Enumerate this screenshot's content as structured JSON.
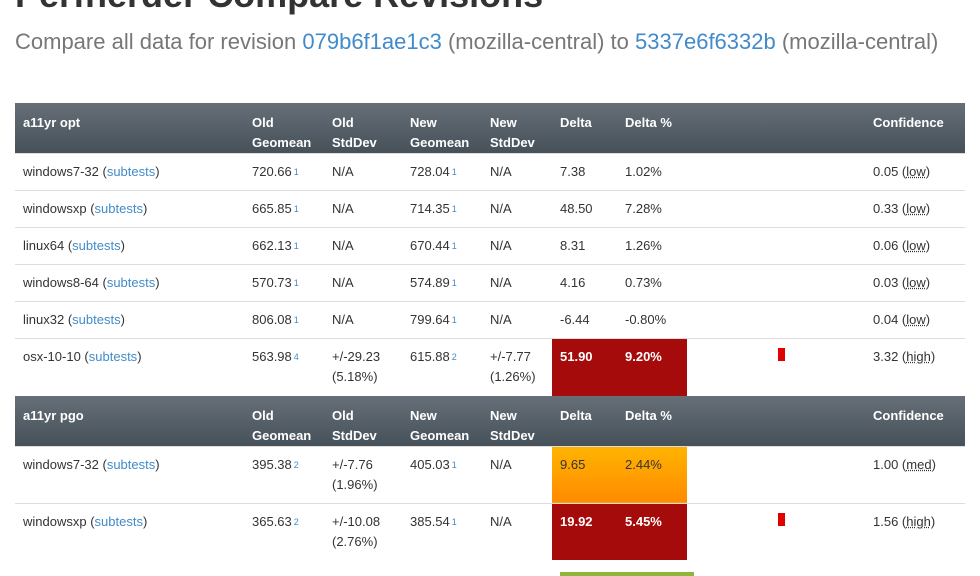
{
  "page": {
    "title": "Perfherder Compare Revisions",
    "subtitle": {
      "prefix": "Compare all data for revision",
      "original_rev": "079b6f1ae1c3",
      "original_repo": "(mozilla-central) to",
      "new_rev": "5337e6f6332b",
      "new_repo": "(mozilla-central)"
    }
  },
  "columns": {
    "old_geomean": "Old Geomean",
    "old_stddev": "Old StdDev",
    "new_geomean": "New Geomean",
    "new_stddev": "New StdDev",
    "delta": "Delta",
    "delta_pct": "Delta %",
    "confidence": "Confidence"
  },
  "groups": [
    {
      "name": "a11yr opt",
      "rows": [
        {
          "platform": "windows7-32",
          "subtests": "subtests",
          "old": "720.66",
          "old_runs": "1",
          "old_sd": "N/A",
          "new": "728.04",
          "new_runs": "1",
          "new_sd": "N/A",
          "delta": "7.38",
          "delta_pct": "1.02%",
          "conf": "0.05",
          "conf_label": "low",
          "state": "none"
        },
        {
          "platform": "windowsxp",
          "subtests": "subtests",
          "old": "665.85",
          "old_runs": "1",
          "old_sd": "N/A",
          "new": "714.35",
          "new_runs": "1",
          "new_sd": "N/A",
          "delta": "48.50",
          "delta_pct": "7.28%",
          "conf": "0.33",
          "conf_label": "low",
          "state": "none"
        },
        {
          "platform": "linux64",
          "subtests": "subtests",
          "old": "662.13",
          "old_runs": "1",
          "old_sd": "N/A",
          "new": "670.44",
          "new_runs": "1",
          "new_sd": "N/A",
          "delta": "8.31",
          "delta_pct": "1.26%",
          "conf": "0.06",
          "conf_label": "low",
          "state": "none"
        },
        {
          "platform": "windows8-64",
          "subtests": "subtests",
          "old": "570.73",
          "old_runs": "1",
          "old_sd": "N/A",
          "new": "574.89",
          "new_runs": "1",
          "new_sd": "N/A",
          "delta": "4.16",
          "delta_pct": "0.73%",
          "conf": "0.03",
          "conf_label": "low",
          "state": "none"
        },
        {
          "platform": "linux32",
          "subtests": "subtests",
          "old": "806.08",
          "old_runs": "1",
          "old_sd": "N/A",
          "new": "799.64",
          "new_runs": "1",
          "new_sd": "N/A",
          "delta": "-6.44",
          "delta_pct": "-0.80%",
          "conf": "0.04",
          "conf_label": "low",
          "state": "none"
        },
        {
          "platform": "osx-10-10",
          "subtests": "subtests",
          "old": "563.98",
          "old_runs": "4",
          "old_sd": "+/-29.23",
          "old_sd_pct": "(5.18%)",
          "new": "615.88",
          "new_runs": "2",
          "new_sd": "+/-7.77",
          "new_sd_pct": "(1.26%)",
          "delta": "51.90",
          "delta_pct": "9.20%",
          "conf": "3.32",
          "conf_label": "high",
          "state": "regression"
        }
      ]
    },
    {
      "name": "a11yr pgo",
      "rows": [
        {
          "platform": "windows7-32",
          "subtests": "subtests",
          "old": "395.38",
          "old_runs": "2",
          "old_sd": "+/-7.76",
          "old_sd_pct": "(1.96%)",
          "new": "405.03",
          "new_runs": "1",
          "new_sd": "N/A",
          "delta": "9.65",
          "delta_pct": "2.44%",
          "conf": "1.00",
          "conf_label": "med",
          "state": "warning"
        },
        {
          "platform": "windowsxp",
          "subtests": "subtests",
          "old": "365.63",
          "old_runs": "2",
          "old_sd": "+/-10.08",
          "old_sd_pct": "(2.76%)",
          "new": "385.54",
          "new_runs": "1",
          "new_sd": "N/A",
          "delta": "19.92",
          "delta_pct": "5.45%",
          "conf": "1.56",
          "conf_label": "high",
          "state": "regression"
        }
      ]
    }
  ],
  "colors": {
    "regression": "#a60b0b",
    "warning": "#ffa500",
    "link": "#428bca",
    "header": "#556068"
  }
}
